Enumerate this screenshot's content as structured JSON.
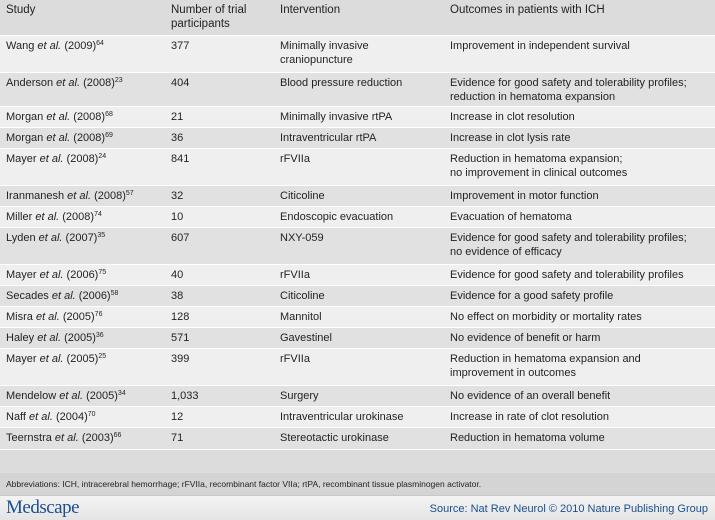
{
  "table": {
    "headers": {
      "study": "Study",
      "participants": "Number of trial participants",
      "participants_lines": [
        "Number of trial",
        "participants"
      ],
      "intervention": "Intervention",
      "outcomes": "Outcomes in patients with ICH"
    },
    "rows": [
      {
        "author": "Wang",
        "etal": "et al.",
        "year": "(2009)",
        "ref": "64",
        "participants": "377",
        "intervention": [
          "Minimally invasive",
          "craniopuncture"
        ],
        "outcomes": [
          "Improvement in independent survival"
        ]
      },
      {
        "author": "Anderson",
        "etal": "et al.",
        "year": "(2008)",
        "ref": "23",
        "participants": "404",
        "intervention": [
          "Blood pressure reduction"
        ],
        "outcomes": [
          "Evidence for good safety and tolerability profiles;",
          "reduction in hematoma expansion"
        ]
      },
      {
        "author": "Morgan",
        "etal": "et al.",
        "year": "(2008)",
        "ref": "68",
        "participants": "21",
        "intervention": [
          "Minimally invasive rtPA"
        ],
        "outcomes": [
          "Increase in clot resolution"
        ]
      },
      {
        "author": "Morgan",
        "etal": "et al.",
        "year": "(2008)",
        "ref": "69",
        "participants": "36",
        "intervention": [
          "Intraventricular rtPA"
        ],
        "outcomes": [
          "Increase in clot lysis rate"
        ]
      },
      {
        "author": "Mayer",
        "etal": "et al.",
        "year": "(2008)",
        "ref": "24",
        "participants": "841",
        "intervention": [
          "rFVIIa"
        ],
        "outcomes": [
          "Reduction in hematoma expansion;",
          "no improvement in clinical outcomes"
        ]
      },
      {
        "author": "Iranmanesh",
        "etal": "et al.",
        "year": "(2008)",
        "ref": "57",
        "participants": "32",
        "intervention": [
          "Citicoline"
        ],
        "outcomes": [
          "Improvement in motor function"
        ]
      },
      {
        "author": "Miller",
        "etal": "et al.",
        "year": "(2008)",
        "ref": "74",
        "participants": "10",
        "intervention": [
          "Endoscopic evacuation"
        ],
        "outcomes": [
          "Evacuation of hematoma"
        ]
      },
      {
        "author": "Lyden",
        "etal": "et al.",
        "year": "(2007)",
        "ref": "35",
        "participants": "607",
        "intervention": [
          "NXY-059"
        ],
        "outcomes": [
          "Evidence for good safety and tolerability profiles;",
          "no evidence of efficacy"
        ]
      },
      {
        "author": "Mayer",
        "etal": "et al.",
        "year": "(2006)",
        "ref": "75",
        "participants": "40",
        "intervention": [
          "rFVIIa"
        ],
        "outcomes": [
          "Evidence for good safety and tolerability profiles"
        ]
      },
      {
        "author": "Secades",
        "etal": "et al.",
        "year": "(2006)",
        "ref": "58",
        "participants": "38",
        "intervention": [
          "Citicoline"
        ],
        "outcomes": [
          "Evidence for a good safety profile"
        ]
      },
      {
        "author": "Misra",
        "etal": "et al.",
        "year": "(2005)",
        "ref": "76",
        "participants": "128",
        "intervention": [
          "Mannitol"
        ],
        "outcomes": [
          "No effect on morbidity or mortality rates"
        ]
      },
      {
        "author": "Haley",
        "etal": "et al.",
        "year": "(2005)",
        "ref": "36",
        "participants": "571",
        "intervention": [
          "Gavestinel"
        ],
        "outcomes": [
          "No evidence of benefit or harm"
        ]
      },
      {
        "author": "Mayer",
        "etal": "et al.",
        "year": "(2005)",
        "ref": "25",
        "participants": "399",
        "intervention": [
          "rFVIIa"
        ],
        "outcomes": [
          "Reduction in hematoma expansion and",
          "improvement in outcomes"
        ]
      },
      {
        "author": "Mendelow",
        "etal": "et al.",
        "year": "(2005)",
        "ref": "34",
        "participants": "1,033",
        "intervention": [
          "Surgery"
        ],
        "outcomes": [
          "No evidence of an overall benefit"
        ]
      },
      {
        "author": "Naff",
        "etal": "et al.",
        "year": "(2004)",
        "ref": "70",
        "participants": "12",
        "intervention": [
          "Intraventricular urokinase"
        ],
        "outcomes": [
          "Increase in rate of clot resolution"
        ]
      },
      {
        "author": "Teernstra",
        "etal": "et al.",
        "year": "(2003)",
        "ref": "66",
        "participants": "71",
        "intervention": [
          "Stereotactic urokinase"
        ],
        "outcomes": [
          "Reduction in hematoma volume"
        ]
      }
    ]
  },
  "abbreviations": "Abbreviations: ICH, intracerebral hemorrhage; rFVIIa, recombinant factor VIIa; rtPA, recombinant tissue plasminogen activator.",
  "footer": {
    "logo": "Medscape",
    "source": "Source: Nat Rev Neurol © 2010 Nature Publishing Group"
  },
  "colors": {
    "header_bg": "#dcdcdc",
    "row_light": "#efefef",
    "row_dark": "#e1e1e1",
    "footer_text": "#1c4f8f"
  }
}
